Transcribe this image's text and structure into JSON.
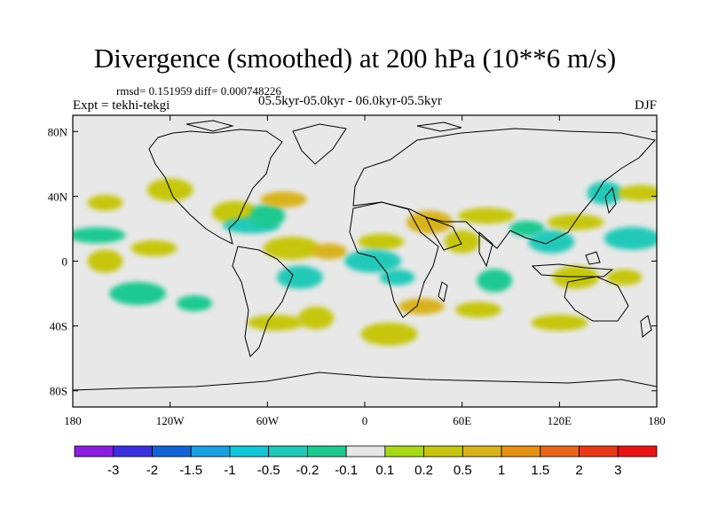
{
  "title": "Divergence (smoothed) at 200 hPa (10**6 m/s)",
  "stats": "rmsd= 0.151959  diff= 0.000748226",
  "experiment": "Expt = tekhi-tekgi",
  "period": "05.5kyr-05.0kyr - 06.0kyr-05.5kyr",
  "season": "DJF",
  "colors": {
    "background": "#e8e8e8",
    "coast": "#000000",
    "levels": [
      "#8a1fe0",
      "#3b2fe0",
      "#1463d6",
      "#1aa0e0",
      "#10c6d6",
      "#20c9b8",
      "#1ec990",
      "#e6e6e6",
      "#a8d818",
      "#c6c610",
      "#d8b21a",
      "#e59214",
      "#e8661a",
      "#e83a18",
      "#e81414"
    ]
  },
  "chart_data": {
    "type": "heatmap",
    "title": "Divergence (smoothed) at 200 hPa (10**6 m/s)",
    "variable": "Divergence (smoothed)",
    "level": "200 hPa",
    "units": "10**6 m/s",
    "x_range": [
      -180,
      180
    ],
    "y_range": [
      -90,
      90
    ],
    "x_tick_labels": [
      "180",
      "120W",
      "60W",
      "0",
      "60E",
      "120E",
      "180"
    ],
    "x_tick_values": [
      -180,
      -120,
      -60,
      0,
      60,
      120,
      180
    ],
    "y_tick_labels": [
      "80N",
      "40N",
      "0",
      "40S",
      "80S"
    ],
    "y_tick_values": [
      80,
      40,
      0,
      -40,
      -80
    ],
    "colorbar_labels": [
      "-3",
      "-2",
      "-1.5",
      "-1",
      "-0.5",
      "-0.2",
      "-0.1",
      "0.1",
      "0.2",
      "0.5",
      "1",
      "1.5",
      "2",
      "3"
    ],
    "colorbar_values": [
      -3,
      -2,
      -1.5,
      -1,
      -0.5,
      -0.2,
      -0.1,
      0.1,
      0.2,
      0.5,
      1,
      1.5,
      2,
      3
    ],
    "features": [
      {
        "lon": -160,
        "lat": 36,
        "value": 0.25
      },
      {
        "lon": -120,
        "lat": 44,
        "value": 0.2
      },
      {
        "lon": -165,
        "lat": 16,
        "value": -0.2
      },
      {
        "lon": -160,
        "lat": 0,
        "value": 0.35
      },
      {
        "lon": -130,
        "lat": 8,
        "value": 0.25
      },
      {
        "lon": -140,
        "lat": -20,
        "value": -0.2
      },
      {
        "lon": -105,
        "lat": -26,
        "value": -0.2
      },
      {
        "lon": -80,
        "lat": 30,
        "value": 0.3
      },
      {
        "lon": -70,
        "lat": 22,
        "value": -0.3
      },
      {
        "lon": -60,
        "lat": 28,
        "value": -0.2
      },
      {
        "lon": -50,
        "lat": 38,
        "value": 0.5
      },
      {
        "lon": -45,
        "lat": 8,
        "value": 0.3
      },
      {
        "lon": -22,
        "lat": 6,
        "value": 0.75
      },
      {
        "lon": -40,
        "lat": -10,
        "value": -0.3
      },
      {
        "lon": -55,
        "lat": -38,
        "value": 0.25
      },
      {
        "lon": -30,
        "lat": -35,
        "value": 0.2
      },
      {
        "lon": 10,
        "lat": 12,
        "value": 0.3
      },
      {
        "lon": 5,
        "lat": 0,
        "value": -0.3
      },
      {
        "lon": 20,
        "lat": -10,
        "value": -0.3
      },
      {
        "lon": 40,
        "lat": 24,
        "value": 0.8
      },
      {
        "lon": 75,
        "lat": 28,
        "value": 0.4
      },
      {
        "lon": 60,
        "lat": 12,
        "value": 0.3
      },
      {
        "lon": 35,
        "lat": -28,
        "value": 0.7
      },
      {
        "lon": 15,
        "lat": -45,
        "value": 0.25
      },
      {
        "lon": 100,
        "lat": 20,
        "value": -0.2
      },
      {
        "lon": 115,
        "lat": 12,
        "value": -0.25
      },
      {
        "lon": 130,
        "lat": 24,
        "value": 0.3
      },
      {
        "lon": 148,
        "lat": 42,
        "value": -0.4
      },
      {
        "lon": 170,
        "lat": 42,
        "value": 0.3
      },
      {
        "lon": 165,
        "lat": 14,
        "value": -0.25
      },
      {
        "lon": 160,
        "lat": -10,
        "value": 0.3
      },
      {
        "lon": 130,
        "lat": -10,
        "value": 0.35
      },
      {
        "lon": 120,
        "lat": -38,
        "value": 0.25
      },
      {
        "lon": 80,
        "lat": -12,
        "value": -0.2
      },
      {
        "lon": 70,
        "lat": -30,
        "value": 0.2
      }
    ]
  }
}
